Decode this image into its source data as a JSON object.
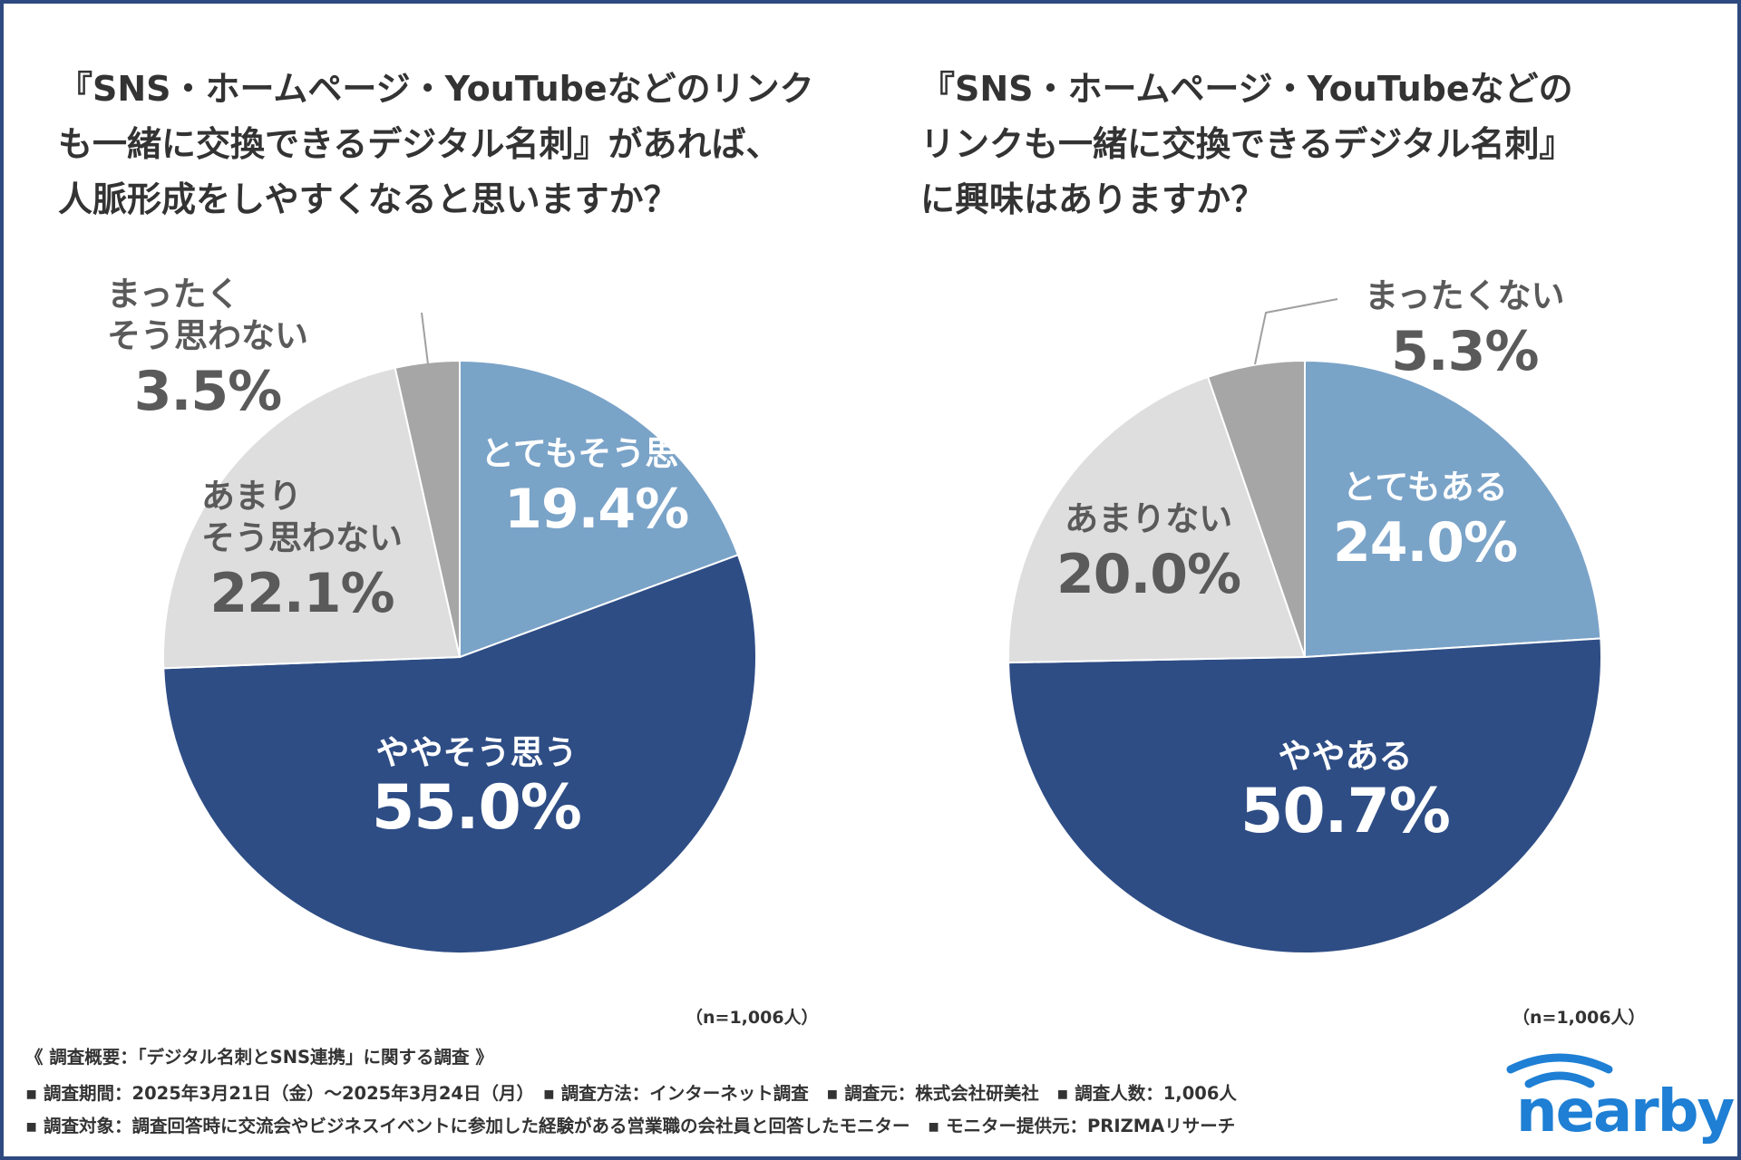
{
  "charts_text": {
    "left_title": "『SNS・ホームページ・YouTubeなどのリンク\nも一緒に交換できるデジタル名刺』があれば、\n人脈形成をしやすくなると思いますか？",
    "right_title": "『SNS・ホームページ・YouTubeなどの\nリンクも一緒に交換できるデジタル名刺』\nに興味はありますか？",
    "left_n": "（n=1,006人）",
    "right_n": "（n=1,006人）"
  },
  "chart_data": [
    {
      "type": "pie",
      "title": "『SNS・ホームページ・YouTubeなどのリンクも一緒に交換できるデジタル名刺』があれば、人脈形成をしやすくなると思いますか？",
      "start": "12 o'clock, clockwise",
      "slices": [
        {
          "label": "とてもそう思う",
          "value": 19.4,
          "display": "19.4%",
          "color": "#7aa3c8",
          "text_color": "#ffffff"
        },
        {
          "label": "ややそう思う",
          "value": 55.0,
          "display": "55.0%",
          "color": "#2e4d85",
          "text_color": "#ffffff"
        },
        {
          "label": "あまりそう思わない",
          "label_lines": [
            "あまり",
            "そう思わない"
          ],
          "value": 22.1,
          "display": "22.1%",
          "color": "#dedede",
          "text_color": "#5a5a5a"
        },
        {
          "label": "まったくそう思わない",
          "label_lines": [
            "まったく",
            "そう思わない"
          ],
          "value": 3.5,
          "display": "3.5%",
          "color": "#a6a6a6",
          "text_color": "#5a5a5a"
        }
      ],
      "n": "n=1,006人"
    },
    {
      "type": "pie",
      "title": "『SNS・ホームページ・YouTubeなどのリンクも一緒に交換できるデジタル名刺』に興味はありますか？",
      "start": "12 o'clock, clockwise",
      "slices": [
        {
          "label": "とてもある",
          "value": 24.0,
          "display": "24.0%",
          "color": "#7aa3c8",
          "text_color": "#ffffff"
        },
        {
          "label": "ややある",
          "value": 50.7,
          "display": "50.7%",
          "color": "#2e4d85",
          "text_color": "#ffffff"
        },
        {
          "label": "あまりない",
          "value": 20.0,
          "display": "20.0%",
          "color": "#dedede",
          "text_color": "#5a5a5a"
        },
        {
          "label": "まったくない",
          "value": 5.3,
          "display": "5.3%",
          "color": "#a6a6a6",
          "text_color": "#5a5a5a"
        }
      ],
      "n": "n=1,006人"
    }
  ],
  "footer": {
    "line1": "《 調査概要：「デジタル名刺とSNS連携」に関する調査 》",
    "line2": "▪ 調査期間：2025年3月21日（金）〜2025年3月24日（月）　▪ 調査方法：インターネット調査　▪ 調査元：株式会社研美社　▪ 調査人数：1,006人",
    "line3": "▪ 調査対象：調査回答時に交流会やビジネスイベントに参加した経験がある営業職の会社員と回答したモニター　▪ モニター提供元：PRIZMAリサーチ"
  },
  "logo": {
    "text": "nearby",
    "color": "#1e7fd4"
  }
}
